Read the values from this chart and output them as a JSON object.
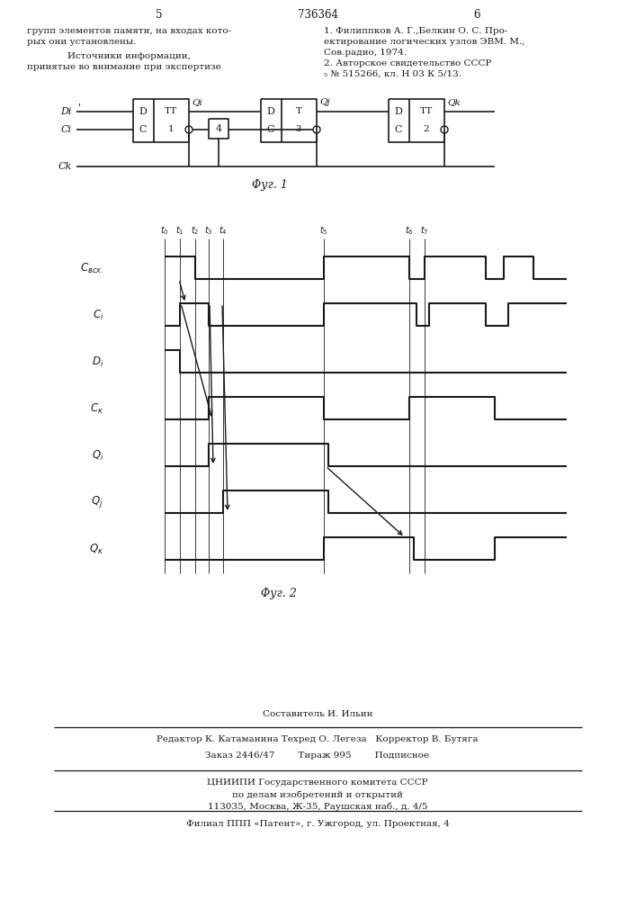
{
  "bg_color": "#ffffff",
  "line_color": "#1a1a1a",
  "page_num_left": "5",
  "page_num_center": "736364",
  "page_num_right": "6",
  "text_col1": [
    "групп элементов памяти, на входах кото-",
    "рых они установлены.",
    "Источники информации,",
    "принятые во внимание при экспертизе"
  ],
  "text_col2": [
    "1. Филиппков А. Г.,Белкин О. С. Про-",
    "ектирование логических узлов ЭВМ. М.,",
    "Сов.радио, 1974.",
    "2. Авторское свидетельство СССР",
    "₅ № 515266, кл. Н 03 К 5/13."
  ],
  "fig1_caption": "Φуг. 1",
  "fig2_caption": "Φуг. 2",
  "footer": [
    "Составитель И. Ильин",
    "Редактор К. Катаманина Техред О. Легеза   Корректор В. Бутяга",
    "Заказ 2446/47        Тираж 995        Подписное",
    "ЦНИИПИ Государственного комитета СССР",
    "по делам изобретений и открытий",
    "113035, Москва, Ж-35, Раушская наб., д. 4/5",
    "Филиал ППП «Патент», г. Ужгород, ул. Проектная, 4"
  ]
}
